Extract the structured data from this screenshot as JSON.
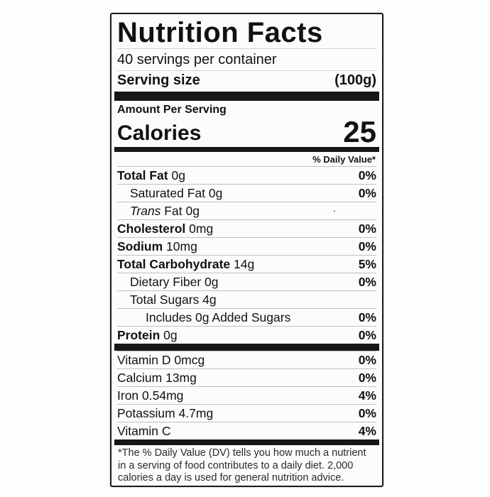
{
  "label": {
    "title": "Nutrition Facts",
    "servings_per_container": "40 servings per container",
    "serving_size": {
      "label": "Serving size",
      "value": "(100g)"
    },
    "amount_per_serving": "Amount Per Serving",
    "calories": {
      "label": "Calories",
      "value": "25"
    },
    "daily_value_header": "% Daily Value*",
    "nutrient_rows": [
      {
        "name": "Total Fat",
        "bold": true,
        "indent": 0,
        "amount": "0g",
        "dv": "0%"
      },
      {
        "name": "Saturated Fat",
        "bold": false,
        "indent": 1,
        "amount": "0g",
        "dv": "0%"
      },
      {
        "name": "Trans",
        "name_rest": "Fat",
        "italic_name": true,
        "bold": false,
        "indent": 1,
        "amount": "0g",
        "dv": "·",
        "dv_muted": true
      },
      {
        "name": "Cholesterol",
        "bold": true,
        "indent": 0,
        "amount": "0mg",
        "dv": "0%"
      },
      {
        "name": "Sodium",
        "bold": true,
        "indent": 0,
        "amount": "10mg",
        "dv": "0%"
      },
      {
        "name": "Total Carbohydrate",
        "bold": true,
        "indent": 0,
        "amount": "14g",
        "dv": "5%"
      },
      {
        "name": "Dietary Fiber",
        "bold": false,
        "indent": 1,
        "amount": "0g",
        "dv": "0%"
      },
      {
        "name": "Total Sugars",
        "bold": false,
        "indent": 1,
        "amount": "4g",
        "dv": ""
      },
      {
        "name": "Includes 0g Added Sugars",
        "bold": false,
        "indent": 2,
        "amount": "",
        "dv": "0%"
      },
      {
        "name": "Protein",
        "bold": true,
        "indent": 0,
        "amount": "0g",
        "dv": "0%"
      }
    ],
    "micronutrient_rows": [
      {
        "name": "Vitamin D",
        "bold": false,
        "indent": 0,
        "amount": "0mcg",
        "dv": "0%"
      },
      {
        "name": "Calcium",
        "bold": false,
        "indent": 0,
        "amount": "13mg",
        "dv": "0%"
      },
      {
        "name": "Iron",
        "bold": false,
        "indent": 0,
        "amount": "0.54mg",
        "dv": "4%"
      },
      {
        "name": "Potassium",
        "bold": false,
        "indent": 0,
        "amount": "4.7mg",
        "dv": "0%"
      },
      {
        "name": "Vitamin C",
        "bold": false,
        "indent": 0,
        "amount": "",
        "dv": "4%"
      }
    ],
    "footnote": "*The % Daily Value (DV) tells you how much a nutrient in a serving of food contributes to a daily diet. 2,000 calories a day is used for general nutrition advice."
  }
}
